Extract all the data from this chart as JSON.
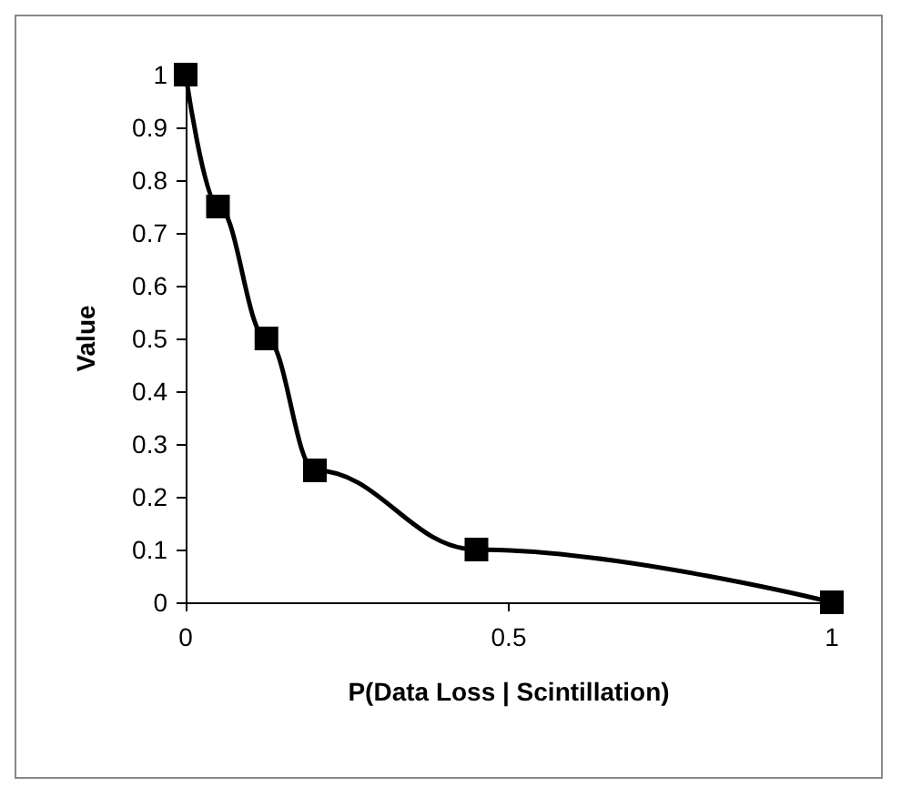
{
  "chart_data": {
    "type": "line",
    "xlabel": "P(Data Loss | Scintillation)",
    "ylabel": "Value",
    "x": [
      0,
      0.05,
      0.125,
      0.2,
      0.45,
      1
    ],
    "series": [
      {
        "color": "#000000",
        "values": [
          1,
          0.75,
          0.5,
          0.25,
          0.1,
          0
        ]
      }
    ],
    "xlim": [
      0,
      1
    ],
    "xticks": [
      0,
      0.5,
      1
    ],
    "ylim": [
      0,
      1
    ],
    "yticks": [
      0,
      0.1,
      0.2,
      0.3,
      0.4,
      0.5,
      0.6,
      0.7,
      0.8,
      0.9,
      1
    ],
    "grid": false,
    "marker": "square",
    "line_style": "solid"
  }
}
